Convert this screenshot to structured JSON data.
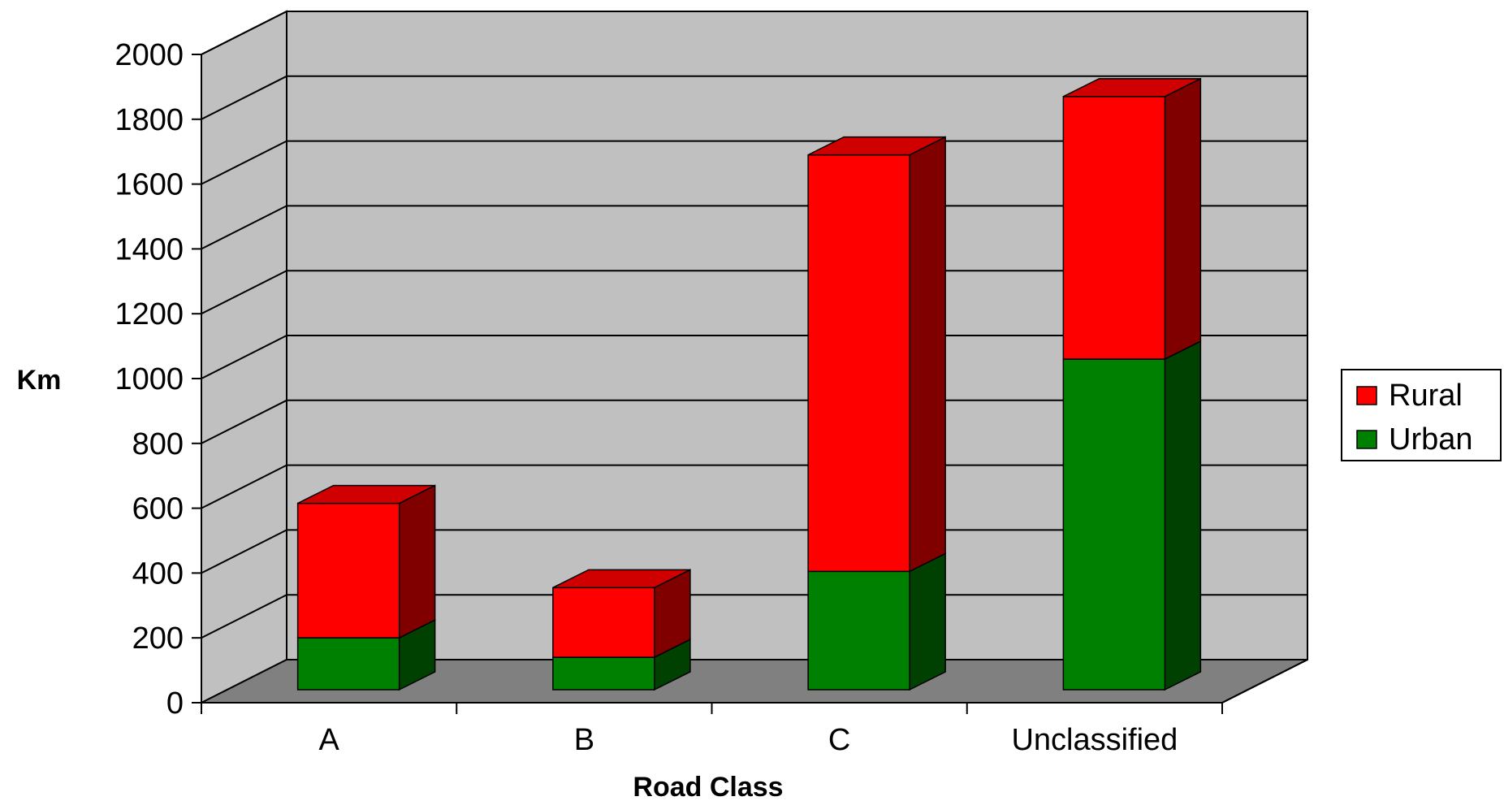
{
  "chart_data": {
    "type": "bar",
    "stacked": true,
    "three_d": true,
    "categories": [
      "A",
      "B",
      "C",
      "Unclassified"
    ],
    "series": [
      {
        "name": "Urban",
        "values": [
          160,
          100,
          365,
          1020
        ]
      },
      {
        "name": "Rural",
        "values": [
          415,
          215,
          1285,
          810
        ]
      }
    ],
    "xlabel": "Road Class",
    "ylabel": "Km",
    "ylim": [
      0,
      2000
    ],
    "yticks": [
      0,
      200,
      400,
      600,
      800,
      1000,
      1200,
      1400,
      1600,
      1800,
      2000
    ],
    "grid": true,
    "legend": "right"
  },
  "colors": {
    "urban_front": "#008000",
    "urban_side": "#004000",
    "urban_top": "#00a000",
    "rural_front": "#ff0000",
    "rural_side": "#800000",
    "rural_top": "#d00000",
    "wall": "#c0c0c0",
    "floor": "#808080",
    "grid": "#000000"
  }
}
